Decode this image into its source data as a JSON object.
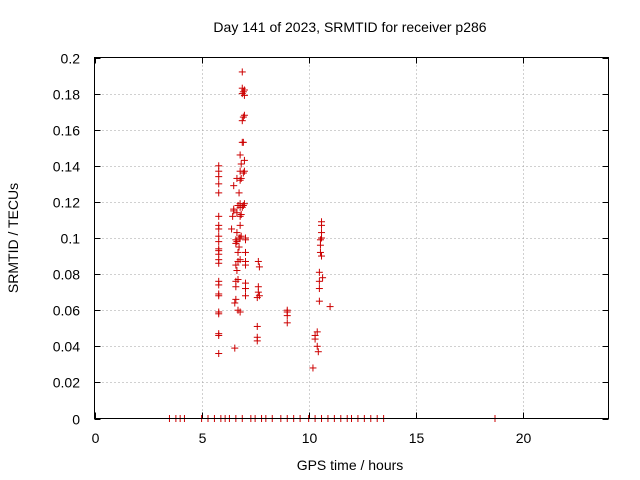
{
  "chart_data": {
    "type": "scatter",
    "title": "Day 141 of 2023, SRMTID for receiver p286",
    "xlabel": "GPS time / hours",
    "ylabel": "SRMTID / TECUs",
    "xlim": [
      0,
      24
    ],
    "ylim": [
      0,
      0.2
    ],
    "xticks": [
      0,
      5,
      10,
      15,
      20
    ],
    "xtick_labels": [
      "0",
      "5",
      "10",
      "15",
      "20"
    ],
    "yticks": [
      0,
      0.02,
      0.04,
      0.06,
      0.08,
      0.1,
      0.12,
      0.14,
      0.16,
      0.18,
      0.2
    ],
    "ytick_labels": [
      "0",
      "0.02",
      "0.04",
      "0.06",
      "0.08",
      "0.1",
      "0.12",
      "0.14",
      "0.16",
      "0.18",
      "0.2"
    ],
    "grid": true,
    "marker": "+",
    "color": "#cc0000",
    "series": [
      {
        "name": "SRMTID",
        "x": [
          5.8,
          5.8,
          5.8,
          5.8,
          5.8,
          5.8,
          5.8,
          5.8,
          5.8,
          5.8,
          5.8,
          5.8,
          5.8,
          5.8,
          5.8,
          5.8,
          5.8,
          5.8,
          5.8,
          5.8,
          5.8,
          5.8,
          5.8,
          5.8,
          6.4,
          6.45,
          6.5,
          6.5,
          6.5,
          6.55,
          6.55,
          6.6,
          6.6,
          6.6,
          6.6,
          6.6,
          6.6,
          6.65,
          6.65,
          6.65,
          6.65,
          6.65,
          6.7,
          6.7,
          6.7,
          6.7,
          6.7,
          6.75,
          6.75,
          6.75,
          6.8,
          6.8,
          6.8,
          6.8,
          6.8,
          6.8,
          6.8,
          6.8,
          6.8,
          6.8,
          6.85,
          6.85,
          6.85,
          6.85,
          6.9,
          6.9,
          6.9,
          6.9,
          6.9,
          6.9,
          6.95,
          6.95,
          6.95,
          6.95,
          6.95,
          7.0,
          7.0,
          7.0,
          7.0,
          7.0,
          7.0,
          7.05,
          7.05,
          7.05,
          7.05,
          7.05,
          7.05,
          7.05,
          7.05,
          7.6,
          7.6,
          7.6,
          7.6,
          7.65,
          7.65,
          7.65,
          7.7,
          7.7,
          9.0,
          9.0,
          9.0,
          9.0,
          10.2,
          10.3,
          10.3,
          10.4,
          10.4,
          10.45,
          10.5,
          10.5,
          10.5,
          10.5,
          10.55,
          10.55,
          10.55,
          10.6,
          10.6,
          10.6,
          10.6,
          10.6,
          10.65,
          11.0,
          3.5,
          3.8,
          4.0,
          4.2,
          5.0,
          5.3,
          5.6,
          5.9,
          6.1,
          6.3,
          6.6,
          6.9,
          7.3,
          7.5,
          7.8,
          8.0,
          8.3,
          8.7,
          9.0,
          9.3,
          9.6,
          10.0,
          10.3,
          10.6,
          10.9,
          11.2,
          11.5,
          11.8,
          12.0,
          12.3,
          12.6,
          12.9,
          13.2,
          13.5,
          18.7
        ],
        "y": [
          0.036,
          0.046,
          0.047,
          0.058,
          0.059,
          0.068,
          0.069,
          0.074,
          0.076,
          0.086,
          0.088,
          0.091,
          0.093,
          0.094,
          0.098,
          0.101,
          0.105,
          0.107,
          0.125,
          0.13,
          0.134,
          0.137,
          0.14,
          0.112,
          0.105,
          0.112,
          0.115,
          0.116,
          0.129,
          0.039,
          0.064,
          0.066,
          0.073,
          0.076,
          0.085,
          0.097,
          0.099,
          0.082,
          0.098,
          0.103,
          0.114,
          0.133,
          0.06,
          0.077,
          0.087,
          0.092,
          0.118,
          0.095,
          0.1,
          0.125,
          0.059,
          0.088,
          0.1,
          0.107,
          0.112,
          0.117,
          0.132,
          0.137,
          0.146,
          0.119,
          0.101,
          0.113,
          0.133,
          0.141,
          0.117,
          0.153,
          0.165,
          0.18,
          0.183,
          0.192,
          0.118,
          0.136,
          0.153,
          0.167,
          0.181,
          0.137,
          0.143,
          0.168,
          0.179,
          0.182,
          0.119,
          0.1,
          0.099,
          0.092,
          0.087,
          0.085,
          0.075,
          0.072,
          0.068,
          0.043,
          0.045,
          0.051,
          0.067,
          0.07,
          0.073,
          0.087,
          0.084,
          0.068,
          0.053,
          0.057,
          0.059,
          0.06,
          0.028,
          0.044,
          0.046,
          0.04,
          0.048,
          0.037,
          0.065,
          0.072,
          0.076,
          0.081,
          0.092,
          0.096,
          0.099,
          0.09,
          0.1,
          0.103,
          0.107,
          0.109,
          0.078,
          0.062,
          0,
          0,
          0,
          0,
          0,
          0,
          0,
          0,
          0,
          0,
          0,
          0,
          0,
          0,
          0,
          0,
          0,
          0,
          0,
          0,
          0,
          0,
          0,
          0,
          0,
          0,
          0,
          0,
          0,
          0,
          0,
          0,
          0,
          0,
          0
        ]
      }
    ]
  }
}
